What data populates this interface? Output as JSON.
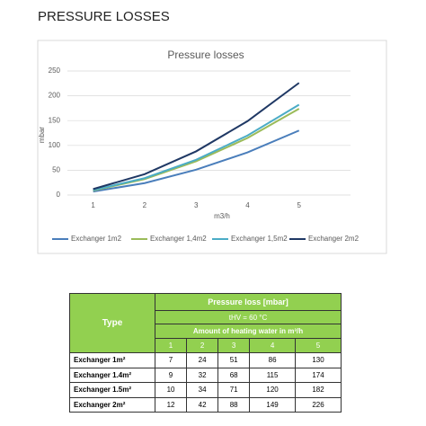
{
  "heading": "PRESSURE LOSSES",
  "chart_data": {
    "type": "line",
    "title": "Pressure losses",
    "x_label": "m3/h",
    "y_label": "mbar",
    "x": [
      1,
      2,
      3,
      4,
      5
    ],
    "xlim": [
      0.5,
      6
    ],
    "xticks": [
      1,
      2,
      3,
      4,
      5
    ],
    "ylim": [
      0,
      250
    ],
    "yticks": [
      0,
      50,
      100,
      150,
      200,
      250
    ],
    "grid": true,
    "legend": "bottom",
    "series": [
      {
        "name": "Exchanger 1m2",
        "color": "#4a7ebb",
        "values": [
          7,
          24,
          51,
          86,
          130
        ]
      },
      {
        "name": "Exchanger 1,4m2",
        "color": "#9bbb59",
        "values": [
          9,
          32,
          68,
          115,
          174
        ]
      },
      {
        "name": "Exchanger 1,5m2",
        "color": "#4bacc6",
        "values": [
          10,
          34,
          71,
          120,
          182
        ]
      },
      {
        "name": "Exchanger 2m2",
        "color": "#1f3864",
        "values": [
          12,
          42,
          88,
          149,
          226
        ]
      }
    ]
  },
  "table": {
    "type_header": "Type",
    "header": "Pressure loss [mbar]",
    "condition": "tHV = 60 °C",
    "subheader": "Amount of heating water in m³/h",
    "columns": [
      "1",
      "2",
      "3",
      "4",
      "5"
    ],
    "rows": [
      {
        "label": "Exchanger 1m²",
        "values": [
          7,
          24,
          51,
          86,
          130
        ]
      },
      {
        "label": "Exchanger 1.4m²",
        "values": [
          9,
          32,
          68,
          115,
          174
        ]
      },
      {
        "label": "Exchanger 1.5m²",
        "values": [
          10,
          34,
          71,
          120,
          182
        ]
      },
      {
        "label": "Exchanger 2m²",
        "values": [
          12,
          42,
          88,
          149,
          226
        ]
      }
    ]
  }
}
